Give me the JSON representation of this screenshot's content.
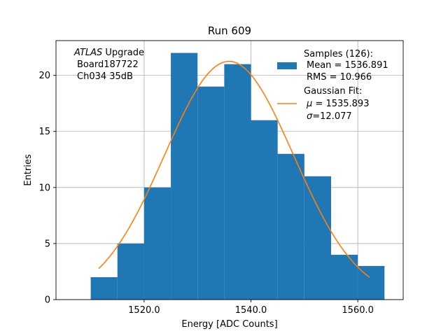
{
  "chart_data": {
    "type": "bar",
    "title": "Run 609",
    "xlabel": "Energy [ADC Counts]",
    "ylabel": "Entries",
    "xlim": [
      1503.5,
      1568.5
    ],
    "ylim": [
      0,
      23.1
    ],
    "grid": true,
    "bin_edges": [
      1510,
      1515,
      1520,
      1525,
      1530,
      1535,
      1540,
      1545,
      1550,
      1555,
      1560,
      1565
    ],
    "values": [
      2,
      5,
      10,
      22,
      19,
      21,
      16,
      13,
      11,
      4,
      3
    ],
    "xticks": [
      1520,
      1540,
      1560
    ],
    "xtick_labels": [
      "1520.0",
      "1540.0",
      "1560.0"
    ],
    "yticks": [
      0,
      5,
      10,
      15,
      20
    ],
    "ytick_labels": [
      "0",
      "5",
      "10",
      "15",
      "20"
    ],
    "fit": {
      "type": "gaussian",
      "mu": 1535.893,
      "sigma": 12.077,
      "x_range": [
        1511.5,
        1562.2
      ],
      "amplitude": 21.25
    },
    "colors": {
      "bars": "#1f77b4",
      "fit": "#ff7f0e",
      "grid": "#b0b0b0"
    },
    "annotation": {
      "italic_part": "ATLAS",
      "line1_rest": " Upgrade",
      "line2": "Board187722",
      "line3": "Ch034 35dB"
    },
    "legend": {
      "position": "top-right",
      "samples_title": "Samples (126):",
      "samples_mean": "Mean = 1536.891",
      "samples_rms": "RMS = 10.966",
      "fit_title": "Gaussian Fit:",
      "fit_mu_symbol": "μ",
      "fit_mu_text": " = 1535.893",
      "fit_sigma_symbol": "σ",
      "fit_sigma_text": "=12.077"
    }
  }
}
